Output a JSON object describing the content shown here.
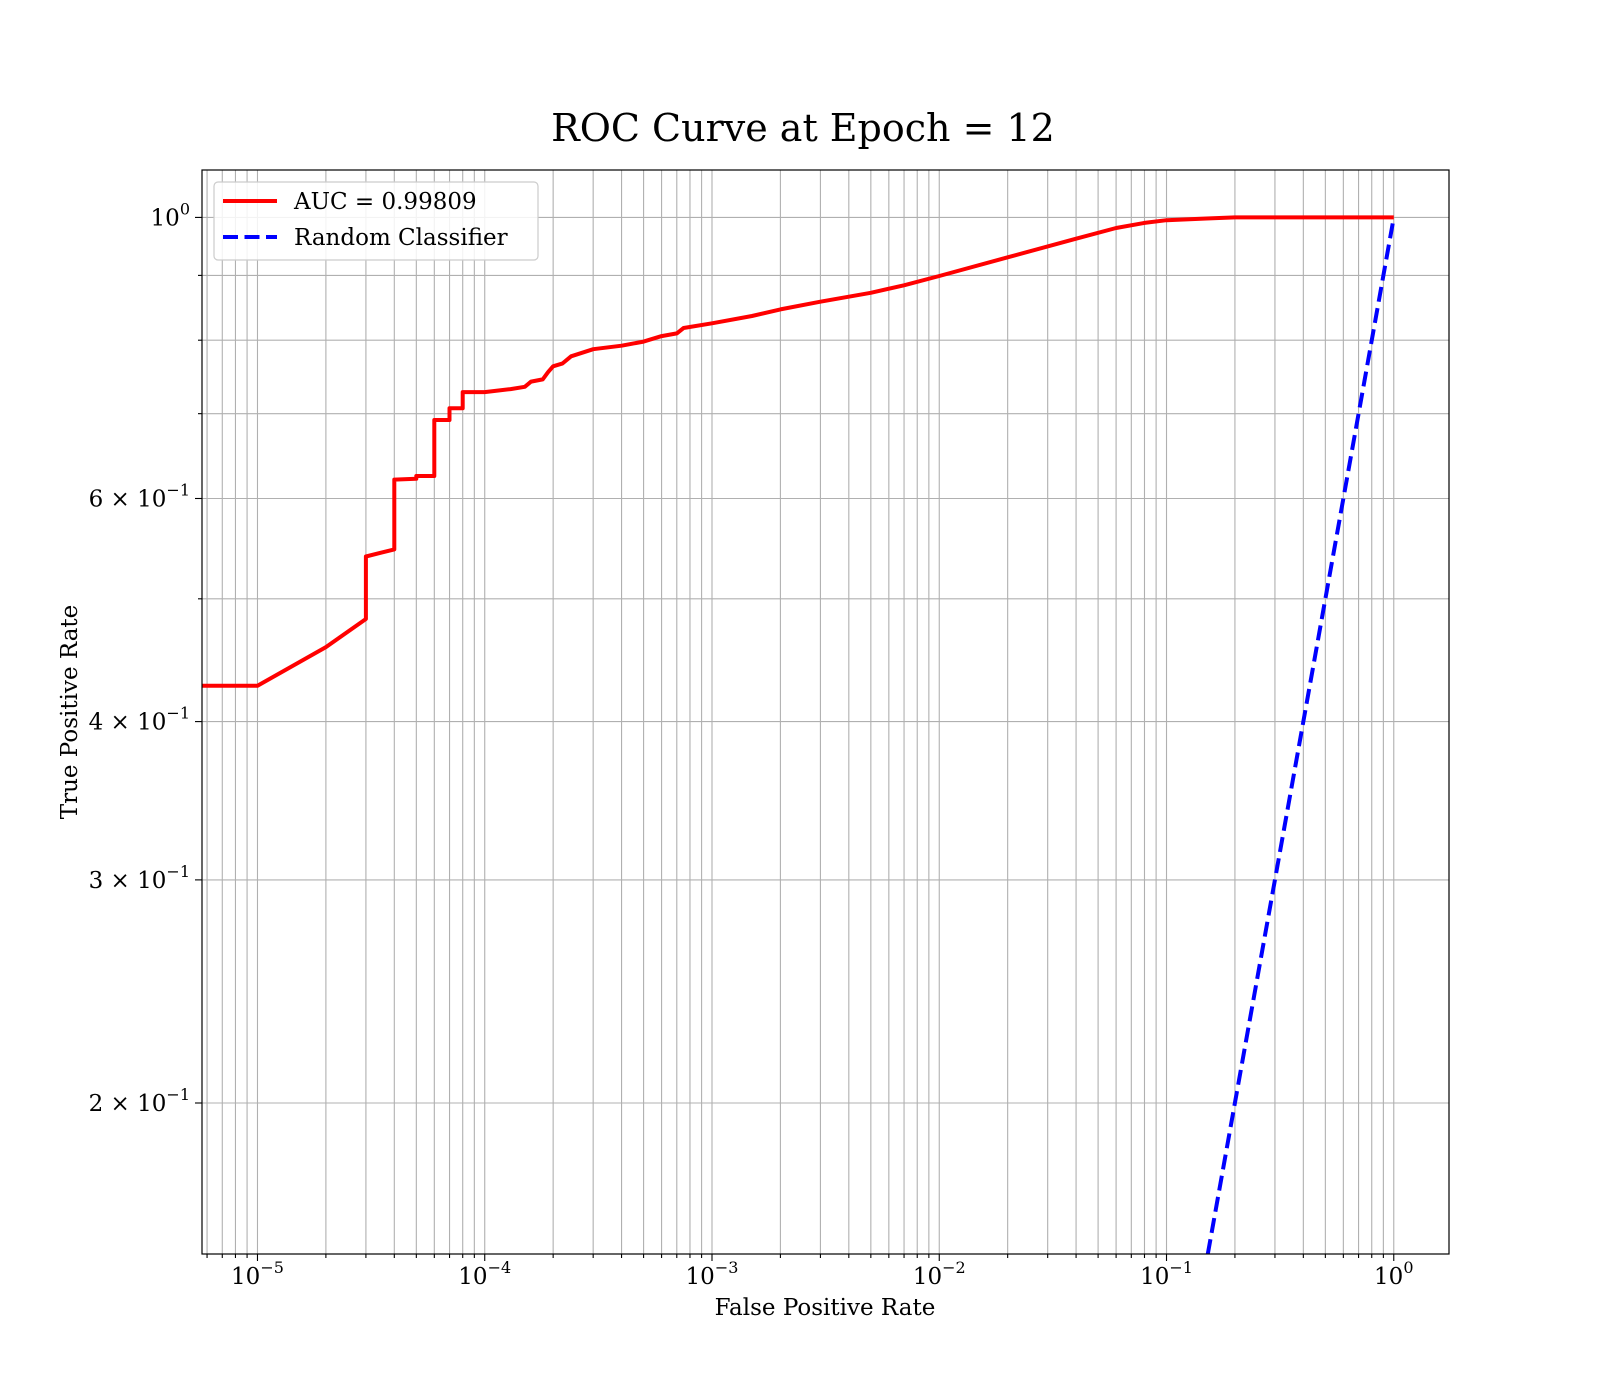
{
  "chart_data": {
    "type": "line",
    "title": "ROC Curve at Epoch = 12",
    "xlabel": "False Positive Rate",
    "ylabel": "True Positive Rate",
    "xscale": "log",
    "yscale": "log",
    "xlim": [
      5.7e-06,
      1.75
    ],
    "ylim": [
      0.152,
      1.09
    ],
    "grid": {
      "major": true,
      "minor": true
    },
    "legend_position": "top-left",
    "x_ticks": [
      {
        "value": 1e-05,
        "base": "10",
        "exp": "−5"
      },
      {
        "value": 0.0001,
        "base": "10",
        "exp": "−4"
      },
      {
        "value": 0.001,
        "base": "10",
        "exp": "−3"
      },
      {
        "value": 0.01,
        "base": "10",
        "exp": "−2"
      },
      {
        "value": 0.1,
        "base": "10",
        "exp": "−1"
      },
      {
        "value": 1,
        "base": "10",
        "exp": "0"
      }
    ],
    "y_ticks": [
      {
        "value": 1.0,
        "base": "10",
        "exp": "0"
      },
      {
        "value": 0.6,
        "base": "6 × 10",
        "exp": "−1"
      },
      {
        "value": 0.4,
        "base": "4 × 10",
        "exp": "−1"
      },
      {
        "value": 0.3,
        "base": "3 × 10",
        "exp": "−1"
      },
      {
        "value": 0.2,
        "base": "2 × 10",
        "exp": "−1"
      }
    ],
    "y_minor_ticks": [
      0.5,
      0.7,
      0.8,
      0.9
    ],
    "series": [
      {
        "name": "AUC = 0.99809",
        "color": "#ff0000",
        "style": "solid",
        "points": [
          [
            5.7e-06,
            0.427
          ],
          [
            1e-05,
            0.427
          ],
          [
            2e-05,
            0.458
          ],
          [
            3e-05,
            0.482
          ],
          [
            3e-05,
            0.54
          ],
          [
            4e-05,
            0.547
          ],
          [
            4e-05,
            0.621
          ],
          [
            5e-05,
            0.622
          ],
          [
            5e-05,
            0.625
          ],
          [
            6e-05,
            0.625
          ],
          [
            6e-05,
            0.692
          ],
          [
            7e-05,
            0.692
          ],
          [
            7e-05,
            0.707
          ],
          [
            8e-05,
            0.707
          ],
          [
            8e-05,
            0.728
          ],
          [
            0.0001,
            0.728
          ],
          [
            0.00013,
            0.732
          ],
          [
            0.00015,
            0.735
          ],
          [
            0.00016,
            0.742
          ],
          [
            0.00018,
            0.745
          ],
          [
            0.00019,
            0.755
          ],
          [
            0.0002,
            0.763
          ],
          [
            0.00022,
            0.767
          ],
          [
            0.00024,
            0.777
          ],
          [
            0.0003,
            0.787
          ],
          [
            0.0004,
            0.792
          ],
          [
            0.0005,
            0.798
          ],
          [
            0.0006,
            0.806
          ],
          [
            0.0007,
            0.81
          ],
          [
            0.00075,
            0.818
          ],
          [
            0.001,
            0.825
          ],
          [
            0.0015,
            0.836
          ],
          [
            0.002,
            0.846
          ],
          [
            0.003,
            0.858
          ],
          [
            0.005,
            0.872
          ],
          [
            0.007,
            0.884
          ],
          [
            0.01,
            0.899
          ],
          [
            0.02,
            0.93
          ],
          [
            0.04,
            0.962
          ],
          [
            0.06,
            0.981
          ],
          [
            0.08,
            0.99
          ],
          [
            0.1,
            0.995
          ],
          [
            0.15,
            0.998
          ],
          [
            0.2,
            1.0
          ],
          [
            1.0,
            1.0
          ]
        ]
      },
      {
        "name": "Random Classifier",
        "color": "#0000ff",
        "style": "dashed",
        "points": [
          [
            0.152,
            0.152
          ],
          [
            1.0,
            1.0
          ]
        ]
      }
    ]
  }
}
